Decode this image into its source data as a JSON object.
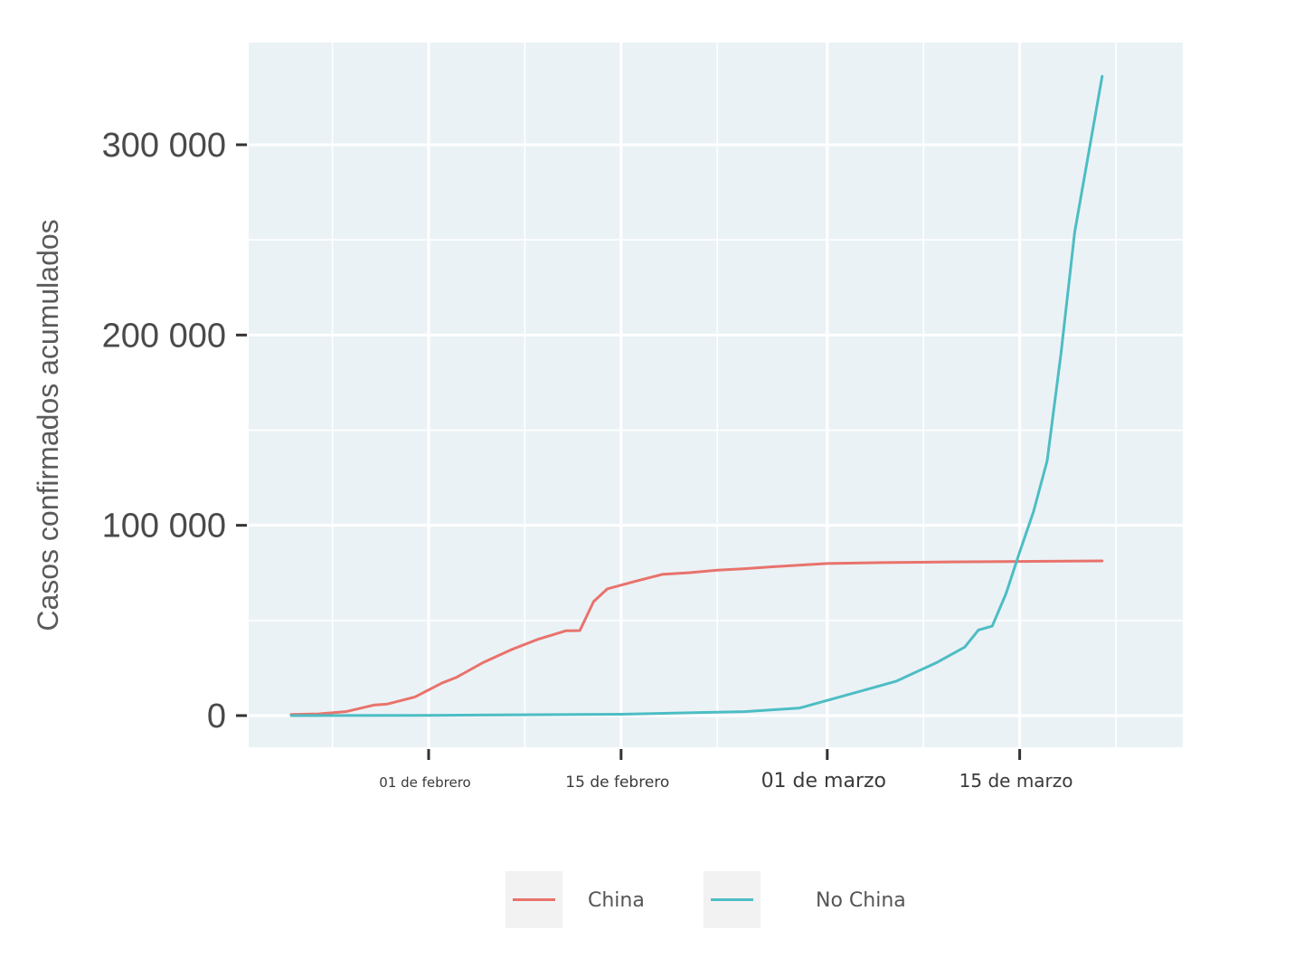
{
  "chart_data": {
    "type": "line",
    "ylabel": "Casos confirmados acumulados",
    "xlabel": "",
    "title": "",
    "x_start": "2020-01-22",
    "x_end": "2020-03-21",
    "ylim": [
      -15000,
      350000
    ],
    "yticks": [
      {
        "value": 0,
        "label": "0"
      },
      {
        "value": 100000,
        "label": "100 000"
      },
      {
        "value": 200000,
        "label": "200 000"
      },
      {
        "value": 300000,
        "label": "300 000"
      }
    ],
    "xticks": [
      {
        "date": "2020-02-01",
        "label": "01 de febrero",
        "size": 15
      },
      {
        "date": "2020-02-15",
        "label": "15 de febrero",
        "size": 17
      },
      {
        "date": "2020-03-01",
        "label": "01 de marzo",
        "size": 22
      },
      {
        "date": "2020-03-15",
        "label": "15 de marzo",
        "size": 20
      }
    ],
    "grid": true,
    "legend_position": "bottom",
    "series": [
      {
        "name": "China",
        "color": "#E8736C",
        "points": [
          [
            "2020-01-22",
            550
          ],
          [
            "2020-01-24",
            920
          ],
          [
            "2020-01-26",
            2100
          ],
          [
            "2020-01-28",
            5500
          ],
          [
            "2020-01-29",
            6100
          ],
          [
            "2020-01-31",
            9800
          ],
          [
            "2020-02-02",
            17200
          ],
          [
            "2020-02-03",
            20000
          ],
          [
            "2020-02-05",
            28000
          ],
          [
            "2020-02-07",
            34600
          ],
          [
            "2020-02-09",
            40200
          ],
          [
            "2020-02-11",
            44600
          ],
          [
            "2020-02-12",
            44700
          ],
          [
            "2020-02-13",
            59900
          ],
          [
            "2020-02-14",
            66600
          ],
          [
            "2020-02-16",
            70500
          ],
          [
            "2020-02-18",
            74200
          ],
          [
            "2020-02-20",
            75100
          ],
          [
            "2020-02-22",
            76400
          ],
          [
            "2020-02-24",
            77200
          ],
          [
            "2020-02-26",
            78200
          ],
          [
            "2020-03-01",
            79900
          ],
          [
            "2020-03-05",
            80400
          ],
          [
            "2020-03-10",
            80800
          ],
          [
            "2020-03-15",
            81000
          ],
          [
            "2020-03-21",
            81300
          ]
        ]
      },
      {
        "name": "No China",
        "color": "#4DBDC4",
        "points": [
          [
            "2020-01-22",
            0
          ],
          [
            "2020-02-01",
            130
          ],
          [
            "2020-02-15",
            700
          ],
          [
            "2020-02-24",
            2100
          ],
          [
            "2020-02-28",
            4000
          ],
          [
            "2020-03-01",
            8000
          ],
          [
            "2020-03-04",
            14000
          ],
          [
            "2020-03-06",
            18000
          ],
          [
            "2020-03-09",
            28000
          ],
          [
            "2020-03-11",
            36000
          ],
          [
            "2020-03-12",
            45000
          ],
          [
            "2020-03-13",
            47000
          ],
          [
            "2020-03-14",
            64000
          ],
          [
            "2020-03-15",
            86000
          ],
          [
            "2020-03-16",
            107000
          ],
          [
            "2020-03-17",
            134000
          ],
          [
            "2020-03-18",
            190000
          ],
          [
            "2020-03-19",
            254000
          ],
          [
            "2020-03-21",
            336000
          ]
        ]
      }
    ]
  }
}
